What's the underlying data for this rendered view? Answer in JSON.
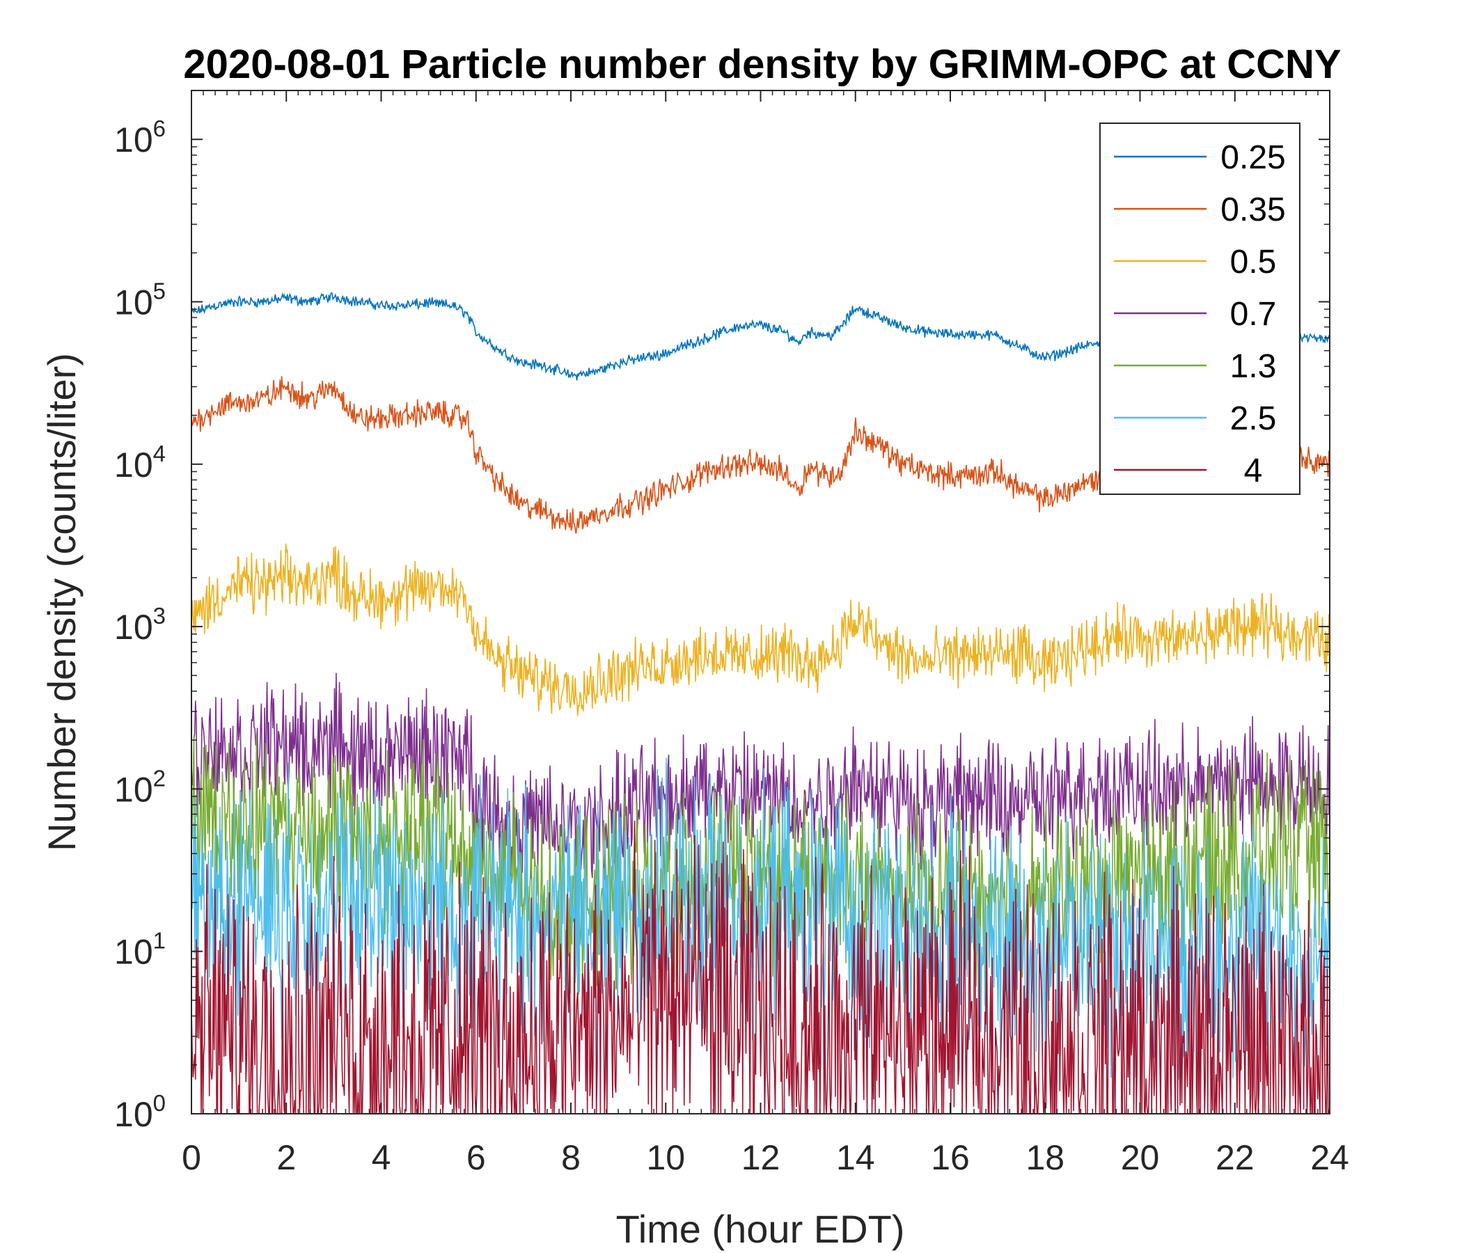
{
  "chart_data": {
    "type": "line",
    "title": "2020-08-01 Particle number density by GRIMM-OPC at CCNY",
    "xlabel": "Time (hour EDT)",
    "ylabel": "Number density (counts/liter)",
    "xlim": [
      0,
      24
    ],
    "ylim": [
      1,
      2000000
    ],
    "yscale": "log",
    "xticks": [
      0,
      2,
      4,
      6,
      8,
      10,
      12,
      14,
      16,
      18,
      20,
      22,
      24
    ],
    "yticks": [
      {
        "value": 1,
        "base": "10",
        "exp": "0"
      },
      {
        "value": 10,
        "base": "10",
        "exp": "1"
      },
      {
        "value": 100,
        "base": "10",
        "exp": "2"
      },
      {
        "value": 1000,
        "base": "10",
        "exp": "3"
      },
      {
        "value": 10000,
        "base": "10",
        "exp": "4"
      },
      {
        "value": 100000,
        "base": "10",
        "exp": "5"
      },
      {
        "value": 1000000,
        "base": "10",
        "exp": "6"
      }
    ],
    "grid": false,
    "legend_position": "top-right",
    "series": [
      {
        "name": "0.25",
        "color": "#0072BD",
        "noise": 0.04,
        "x": [
          0,
          0.5,
          1,
          1.5,
          2,
          2.5,
          3,
          3.5,
          4,
          4.5,
          5,
          5.5,
          5.8,
          6,
          6.5,
          7,
          7.5,
          8,
          8.5,
          9,
          9.5,
          10,
          10.5,
          11,
          11.5,
          12,
          12.5,
          12.8,
          13,
          13.5,
          13.7,
          14,
          14.5,
          15,
          15.5,
          16,
          16.5,
          17,
          17.5,
          18,
          18.5,
          19,
          19.5,
          20,
          20.5,
          21,
          21.5,
          22,
          22.5,
          23,
          23.5,
          24
        ],
        "y": [
          85000,
          95000,
          100000,
          100000,
          105000,
          100000,
          108000,
          100000,
          95000,
          95000,
          98000,
          95000,
          85000,
          65000,
          50000,
          42000,
          40000,
          35000,
          37000,
          42000,
          45000,
          48000,
          55000,
          62000,
          70000,
          72000,
          65000,
          56000,
          65000,
          62000,
          70000,
          92000,
          80000,
          70000,
          65000,
          63000,
          63000,
          62000,
          52000,
          45000,
          50000,
          55000,
          52000,
          50000,
          58000,
          62000,
          60000,
          65000,
          65000,
          62000,
          60000,
          58000
        ]
      },
      {
        "name": "0.35",
        "color": "#D95319",
        "noise": 0.1,
        "x": [
          0,
          0.5,
          1,
          1.5,
          2,
          2.5,
          3,
          3.5,
          4,
          4.5,
          5,
          5.5,
          5.8,
          6,
          6.5,
          7,
          7.5,
          8,
          8.5,
          9,
          9.5,
          10,
          10.5,
          11,
          11.5,
          12,
          12.5,
          12.8,
          13,
          13.5,
          13.7,
          14,
          14.5,
          15,
          15.5,
          16,
          16.5,
          17,
          17.5,
          18,
          18.5,
          19,
          19.5,
          20,
          20.5,
          21,
          21.5,
          22,
          22.5,
          23,
          23.5,
          24
        ],
        "y": [
          18000,
          22000,
          24000,
          25000,
          30000,
          25000,
          30000,
          19000,
          19000,
          20000,
          21000,
          20000,
          19000,
          12000,
          7500,
          5500,
          5000,
          4300,
          4800,
          5500,
          6000,
          7000,
          8000,
          9500,
          10000,
          10000,
          9000,
          7000,
          9500,
          8500,
          9000,
          16000,
          13000,
          10000,
          9000,
          8500,
          8500,
          9000,
          7000,
          6000,
          7000,
          8000,
          8500,
          8000,
          8500,
          9000,
          9500,
          10000,
          10000,
          10500,
          11000,
          10000
        ]
      },
      {
        "name": "0.5",
        "color": "#EDB120",
        "noise": 0.22,
        "x": [
          0,
          0.5,
          1,
          1.5,
          2,
          2.5,
          3,
          3.5,
          4,
          4.5,
          5,
          5.5,
          5.8,
          6,
          6.5,
          7,
          7.5,
          8,
          8.5,
          9,
          9.5,
          10,
          10.5,
          11,
          11.5,
          12,
          12.5,
          13,
          13.5,
          14,
          14.5,
          15,
          15.5,
          16,
          16.5,
          17,
          17.5,
          18,
          18.5,
          19,
          19.5,
          20,
          20.5,
          21,
          21.5,
          22,
          22.5,
          23,
          23.5,
          24
        ],
        "y": [
          1100,
          1500,
          1800,
          1800,
          2000,
          1800,
          2200,
          1500,
          1500,
          1600,
          1700,
          1700,
          1600,
          900,
          600,
          500,
          450,
          420,
          450,
          520,
          550,
          600,
          650,
          700,
          650,
          650,
          700,
          600,
          700,
          1100,
          800,
          650,
          600,
          650,
          700,
          650,
          700,
          550,
          650,
          800,
          900,
          850,
          800,
          850,
          900,
          1000,
          1000,
          950,
          900,
          800
        ]
      },
      {
        "name": "0.7",
        "color": "#7E2F8E",
        "noise": 0.45,
        "x": [
          0,
          0.5,
          1,
          1.5,
          2,
          2.5,
          3,
          3.5,
          4,
          4.5,
          5,
          5.5,
          5.8,
          6,
          6.5,
          7,
          7.5,
          8,
          8.5,
          9,
          9.5,
          10,
          10.5,
          11,
          11.5,
          12,
          12.5,
          13,
          13.5,
          14,
          14.5,
          15,
          15.5,
          16,
          16.5,
          17,
          17.5,
          18,
          18.5,
          19,
          19.5,
          20,
          20.5,
          21,
          21.5,
          22,
          22.5,
          23,
          23.5,
          24
        ],
        "y": [
          160,
          180,
          170,
          180,
          190,
          170,
          200,
          160,
          150,
          160,
          170,
          160,
          160,
          90,
          65,
          60,
          60,
          55,
          60,
          70,
          80,
          90,
          95,
          100,
          95,
          90,
          85,
          80,
          90,
          120,
          100,
          85,
          80,
          85,
          90,
          80,
          85,
          80,
          90,
          110,
          100,
          100,
          95,
          100,
          105,
          110,
          110,
          110,
          110,
          100
        ]
      },
      {
        "name": "1.3",
        "color": "#77AC30",
        "noise": 0.65,
        "x": [
          0,
          1,
          2,
          3,
          4,
          5,
          5.8,
          6,
          7,
          8,
          9,
          10,
          11,
          12,
          13,
          14,
          15,
          16,
          17,
          18,
          19,
          20,
          21,
          22,
          23,
          24
        ],
        "y": [
          60,
          60,
          60,
          55,
          48,
          50,
          48,
          35,
          22,
          20,
          22,
          25,
          28,
          30,
          25,
          28,
          22,
          20,
          20,
          22,
          25,
          28,
          32,
          40,
          42,
          38
        ]
      },
      {
        "name": "2.5",
        "color": "#4DBEEE",
        "noise": 0.9,
        "x": [
          0,
          1,
          2,
          3,
          4,
          5,
          6,
          7,
          8,
          9,
          10,
          11,
          12,
          13,
          14,
          15,
          16,
          17,
          18,
          19,
          20,
          21,
          22,
          23,
          24
        ],
        "y": [
          18,
          20,
          20,
          20,
          20,
          20,
          18,
          16,
          15,
          18,
          20,
          20,
          18,
          17,
          15,
          14,
          13,
          12,
          12,
          12,
          10,
          9,
          10,
          10,
          9
        ]
      },
      {
        "name": "4",
        "color": "#A2142F",
        "noise": 1.2,
        "x": [
          0,
          2,
          4,
          6,
          8,
          9,
          10,
          11,
          12,
          14,
          16,
          18,
          20,
          22,
          24
        ],
        "y": [
          3,
          3,
          3,
          3,
          3,
          3.5,
          6,
          5,
          3.5,
          3,
          3,
          3,
          2.5,
          2.5,
          2
        ]
      }
    ]
  }
}
